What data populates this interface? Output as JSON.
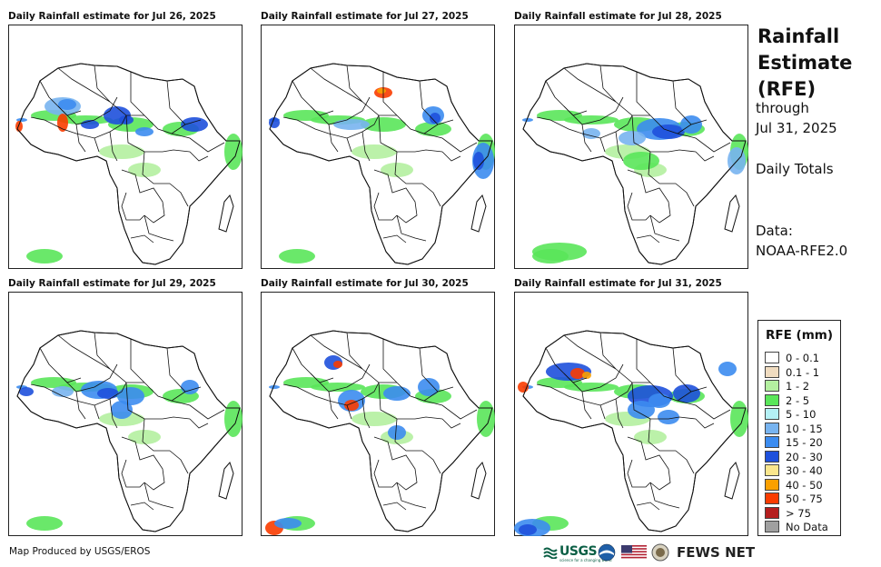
{
  "panels": [
    {
      "title": "Daily Rainfall estimate for Jul 26, 2025"
    },
    {
      "title": "Daily Rainfall estimate for Jul 27, 2025"
    },
    {
      "title": "Daily Rainfall estimate for Jul 28, 2025"
    },
    {
      "title": "Daily Rainfall estimate for Jul 29, 2025"
    },
    {
      "title": "Daily Rainfall estimate for Jul 30, 2025"
    },
    {
      "title": "Daily Rainfall estimate for Jul 31, 2025"
    }
  ],
  "sidebar": {
    "title_line1": "Rainfall",
    "title_line2": "Estimate",
    "title_line3": "(RFE)",
    "through": "through",
    "date": "Jul 31, 2025",
    "totals": "Daily Totals",
    "data_label": "Data:",
    "data_source": "NOAA-RFE2.0"
  },
  "legend": {
    "title": "RFE (mm)",
    "items": [
      {
        "label": "0 - 0.1",
        "color": "#ffffff"
      },
      {
        "label": "0.1 - 1",
        "color": "#f0dcc0"
      },
      {
        "label": "1 - 2",
        "color": "#b4f0a0"
      },
      {
        "label": "2 - 5",
        "color": "#5ae65a"
      },
      {
        "label": "5 - 10",
        "color": "#b4f0f5"
      },
      {
        "label": "10 - 15",
        "color": "#78b4f0"
      },
      {
        "label": "15 - 20",
        "color": "#3c8cf0"
      },
      {
        "label": "20 - 30",
        "color": "#1e50dc"
      },
      {
        "label": "30 - 40",
        "color": "#fae68c"
      },
      {
        "label": "40 - 50",
        "color": "#faa000"
      },
      {
        "label": "50 - 75",
        "color": "#fa3c00"
      },
      {
        "label": "> 75",
        "color": "#b41e1e"
      },
      {
        "label": "No Data",
        "color": "#a0a0a0"
      }
    ]
  },
  "footer": {
    "credit": "Map Produced by USGS/EROS",
    "usgs_logo": "USGS",
    "usgs_tagline": "science for a changing world",
    "fews_logo": "FEWS NET"
  }
}
